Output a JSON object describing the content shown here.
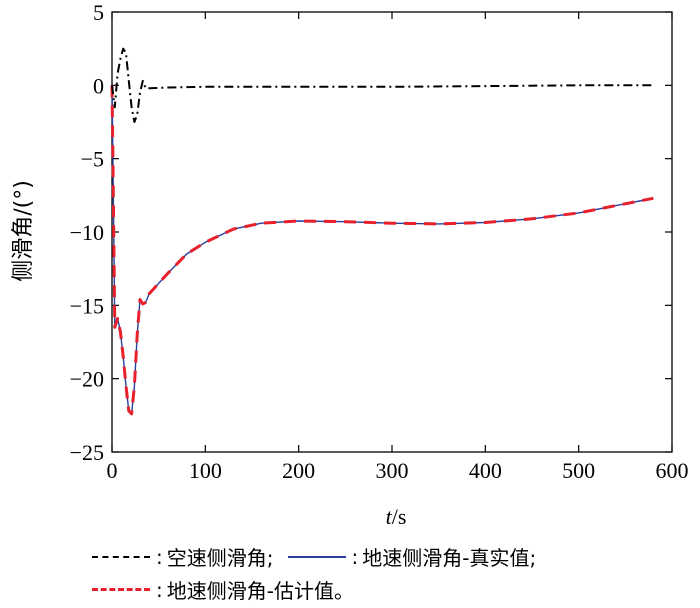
{
  "chart_data": {
    "type": "line",
    "xlabel_italic": "t",
    "xlabel_unit": "/s",
    "ylabel": "侧滑角/(°)",
    "xlim": [
      0,
      600
    ],
    "ylim": [
      -25,
      5
    ],
    "xticks": [
      0,
      100,
      200,
      300,
      400,
      500,
      600
    ],
    "yticks": [
      5,
      0,
      -5,
      -10,
      -15,
      -20,
      -25
    ],
    "ytick_labels": [
      "5",
      "0",
      "−5",
      "−10",
      "−15",
      "−20",
      "−25"
    ],
    "grid": false,
    "series": [
      {
        "name": "空速侧滑角;",
        "color": "#000000",
        "style": "dash-dot",
        "x": [
          0,
          3,
          6,
          9,
          12,
          15,
          18,
          21,
          24,
          27,
          30,
          33,
          36,
          40,
          60,
          100,
          200,
          300,
          400,
          500,
          580
        ],
        "y": [
          0,
          -1.5,
          0.8,
          1.8,
          2.5,
          2.2,
          0.3,
          -1.5,
          -2.5,
          -2.0,
          -0.5,
          0.3,
          -0.2,
          -0.2,
          -0.15,
          -0.1,
          -0.1,
          -0.1,
          -0.05,
          0,
          0
        ]
      },
      {
        "name": "地速侧滑角-真实值;",
        "color": "#2a3fa0",
        "style": "solid",
        "x": [
          0,
          1,
          3,
          6,
          9,
          12,
          15,
          18,
          21,
          24,
          27,
          30,
          33,
          36,
          40,
          50,
          60,
          80,
          100,
          130,
          160,
          200,
          250,
          300,
          350,
          400,
          450,
          500,
          540,
          580
        ],
        "y": [
          0,
          -5,
          -16.5,
          -15.9,
          -16.8,
          -18.5,
          -20.5,
          -22.2,
          -22.4,
          -20.5,
          -17.0,
          -14.6,
          -14.9,
          -14.8,
          -14.2,
          -13.5,
          -12.8,
          -11.5,
          -10.7,
          -9.8,
          -9.4,
          -9.25,
          -9.3,
          -9.4,
          -9.45,
          -9.35,
          -9.1,
          -8.7,
          -8.2,
          -7.7
        ]
      },
      {
        "name": "地速侧滑角-估计值。",
        "color": "#e8202a",
        "style": "dashed",
        "x": [
          0,
          1,
          3,
          6,
          9,
          12,
          15,
          18,
          21,
          24,
          27,
          30,
          33,
          36,
          40,
          50,
          60,
          80,
          100,
          130,
          160,
          200,
          250,
          300,
          350,
          400,
          450,
          500,
          540,
          580
        ],
        "y": [
          0,
          -5,
          -16.5,
          -15.9,
          -16.8,
          -18.5,
          -20.5,
          -22.2,
          -22.4,
          -20.5,
          -17.0,
          -14.6,
          -14.9,
          -14.8,
          -14.2,
          -13.5,
          -12.8,
          -11.5,
          -10.7,
          -9.8,
          -9.4,
          -9.25,
          -9.3,
          -9.4,
          -9.45,
          -9.35,
          -9.1,
          -8.7,
          -8.2,
          -7.7
        ]
      }
    ]
  },
  "legend": {
    "items": [
      "空速侧滑角;",
      "地速侧滑角-真实值;",
      "地速侧滑角-估计值。"
    ],
    "separator": ":"
  }
}
